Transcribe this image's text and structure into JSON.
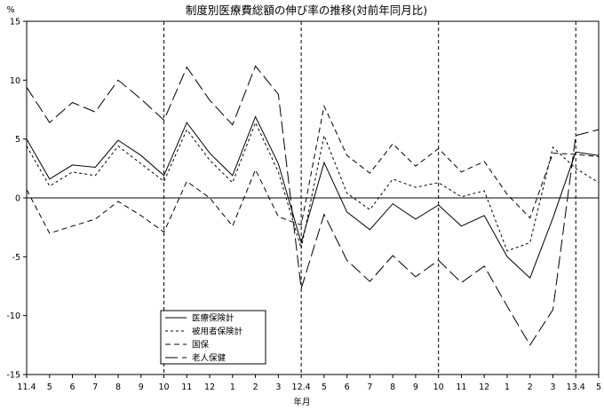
{
  "chart_data": {
    "type": "line",
    "title": "制度別医療費総額の伸び率の推移(対前年同月比)",
    "xlabel": "年月",
    "ylabel": "%",
    "ylim": [
      -15,
      15
    ],
    "y_ticks": [
      "15",
      "10",
      "5",
      "0",
      "-5",
      "-10",
      "-15"
    ],
    "x_ticks": [
      "11.4",
      "5",
      "6",
      "7",
      "8",
      "9",
      "10",
      "11",
      "12",
      "1",
      "2",
      "3",
      "12.4",
      "5",
      "6",
      "7",
      "8",
      "9",
      "10",
      "11",
      "12",
      "1",
      "2",
      "3",
      "13.4",
      "5"
    ],
    "vertical_dividers_at_index": [
      6,
      12,
      18,
      24
    ],
    "legend_placement": "bottom-center",
    "series": [
      {
        "name": "医療保険計",
        "dash": "solid",
        "values": [
          5.0,
          1.6,
          2.8,
          2.6,
          4.9,
          3.6,
          1.9,
          6.4,
          3.8,
          1.9,
          6.9,
          2.9,
          -3.8,
          3.0,
          -1.2,
          -2.7,
          -0.5,
          -1.8,
          -0.6,
          -2.4,
          -1.5,
          -5.0,
          -6.8,
          -1.7,
          3.9,
          3.6
        ]
      },
      {
        "name": "被用者保険計",
        "dash": "short",
        "values": [
          4.4,
          1.0,
          2.2,
          1.9,
          4.4,
          2.9,
          1.4,
          5.8,
          3.2,
          1.3,
          6.4,
          2.2,
          -4.3,
          5.3,
          0.4,
          -1.0,
          1.6,
          0.9,
          1.3,
          0.1,
          0.6,
          -4.5,
          -3.8,
          4.3,
          2.5,
          1.3
        ]
      },
      {
        "name": "国保",
        "dash": "medium",
        "values": [
          0.7,
          -3.0,
          -2.4,
          -1.8,
          -0.3,
          -1.5,
          -2.9,
          1.4,
          0.0,
          -2.4,
          2.4,
          -1.6,
          -2.3,
          7.8,
          3.6,
          2.1,
          4.6,
          2.7,
          4.2,
          2.2,
          3.1,
          0.3,
          -1.7,
          3.8,
          3.7,
          3.5
        ]
      },
      {
        "name": "老人保健",
        "dash": "long",
        "values": [
          9.4,
          6.4,
          8.1,
          7.3,
          10.0,
          8.4,
          6.6,
          11.1,
          8.3,
          6.2,
          11.2,
          8.8,
          -7.7,
          -1.4,
          -5.3,
          -7.1,
          -4.9,
          -6.7,
          -5.3,
          -7.2,
          -5.8,
          -9.2,
          -12.5,
          -9.5,
          5.3,
          5.8
        ]
      }
    ]
  }
}
